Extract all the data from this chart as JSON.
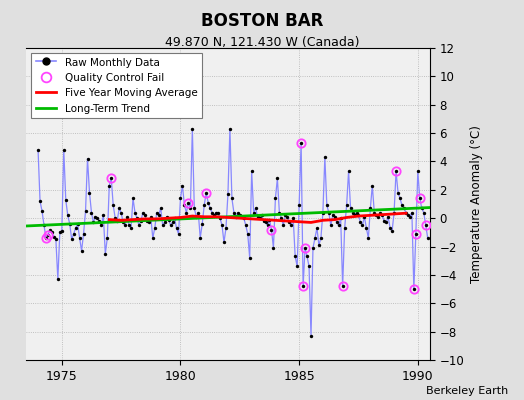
{
  "title": "BOSTON BAR",
  "subtitle": "49.870 N, 121.430 W (Canada)",
  "ylabel": "Temperature Anomaly (°C)",
  "attribution": "Berkeley Earth",
  "ylim": [
    -10,
    12
  ],
  "xlim": [
    1973.5,
    1990.5
  ],
  "yticks": [
    -10,
    -8,
    -6,
    -4,
    -2,
    0,
    2,
    4,
    6,
    8,
    10,
    12
  ],
  "xticks": [
    1975,
    1980,
    1985,
    1990
  ],
  "bg_color": "#e0e0e0",
  "plot_bg_color": "#f0f0f0",
  "raw_line_color": "#8888ff",
  "dot_color": "#000000",
  "ma_color": "#ff0000",
  "trend_color": "#00bb00",
  "qc_color": "#ff44ff",
  "raw_data_x": [
    1974.0,
    1974.083,
    1974.167,
    1974.25,
    1974.333,
    1974.417,
    1974.5,
    1974.583,
    1974.667,
    1974.75,
    1974.833,
    1974.917,
    1975.0,
    1975.083,
    1975.167,
    1975.25,
    1975.333,
    1975.417,
    1975.5,
    1975.583,
    1975.667,
    1975.75,
    1975.833,
    1975.917,
    1976.0,
    1976.083,
    1976.167,
    1976.25,
    1976.333,
    1976.417,
    1976.5,
    1976.583,
    1976.667,
    1976.75,
    1976.833,
    1976.917,
    1977.0,
    1977.083,
    1977.167,
    1977.25,
    1977.333,
    1977.417,
    1977.5,
    1977.583,
    1977.667,
    1977.75,
    1977.833,
    1977.917,
    1978.0,
    1978.083,
    1978.167,
    1978.25,
    1978.333,
    1978.417,
    1978.5,
    1978.583,
    1978.667,
    1978.75,
    1978.833,
    1978.917,
    1979.0,
    1979.083,
    1979.167,
    1979.25,
    1979.333,
    1979.417,
    1979.5,
    1979.583,
    1979.667,
    1979.75,
    1979.833,
    1979.917,
    1980.0,
    1980.083,
    1980.167,
    1980.25,
    1980.333,
    1980.417,
    1980.5,
    1980.583,
    1980.667,
    1980.75,
    1980.833,
    1980.917,
    1981.0,
    1981.083,
    1981.167,
    1981.25,
    1981.333,
    1981.417,
    1981.5,
    1981.583,
    1981.667,
    1981.75,
    1981.833,
    1981.917,
    1982.0,
    1982.083,
    1982.167,
    1982.25,
    1982.333,
    1982.417,
    1982.5,
    1982.583,
    1982.667,
    1982.75,
    1982.833,
    1982.917,
    1983.0,
    1983.083,
    1983.167,
    1983.25,
    1983.333,
    1983.417,
    1983.5,
    1983.583,
    1983.667,
    1983.75,
    1983.833,
    1983.917,
    1984.0,
    1984.083,
    1984.167,
    1984.25,
    1984.333,
    1984.417,
    1984.5,
    1984.583,
    1984.667,
    1984.75,
    1984.833,
    1984.917,
    1985.0,
    1985.083,
    1985.167,
    1985.25,
    1985.333,
    1985.417,
    1985.5,
    1985.583,
    1985.667,
    1985.75,
    1985.833,
    1985.917,
    1986.0,
    1986.083,
    1986.167,
    1986.25,
    1986.333,
    1986.417,
    1986.5,
    1986.583,
    1986.667,
    1986.75,
    1986.833,
    1986.917,
    1987.0,
    1987.083,
    1987.167,
    1987.25,
    1987.333,
    1987.417,
    1987.5,
    1987.583,
    1987.667,
    1987.75,
    1987.833,
    1987.917,
    1988.0,
    1988.083,
    1988.167,
    1988.25,
    1988.333,
    1988.417,
    1988.5,
    1988.583,
    1988.667,
    1988.75,
    1988.833,
    1988.917,
    1989.0,
    1989.083,
    1989.167,
    1989.25,
    1989.333,
    1989.417,
    1989.5,
    1989.583,
    1989.667,
    1989.75,
    1989.833,
    1989.917,
    1990.0,
    1990.083,
    1990.167,
    1990.25,
    1990.333,
    1990.417
  ],
  "raw_data_y": [
    4.8,
    1.2,
    0.5,
    -0.5,
    -1.4,
    -1.2,
    -0.8,
    -1.0,
    -1.3,
    -1.5,
    -4.3,
    -1.0,
    -0.9,
    4.8,
    1.3,
    0.2,
    -0.4,
    -1.5,
    -1.1,
    -0.7,
    -0.4,
    -1.4,
    -2.3,
    -1.1,
    0.5,
    4.2,
    1.8,
    0.4,
    -0.3,
    0.1,
    0.0,
    -0.2,
    -0.5,
    0.2,
    -2.5,
    -1.4,
    2.3,
    2.8,
    0.9,
    0.0,
    -0.2,
    0.7,
    0.4,
    -0.3,
    -0.5,
    0.1,
    -0.5,
    -0.7,
    1.4,
    0.4,
    0.0,
    -0.5,
    -0.2,
    0.4,
    0.2,
    -0.2,
    -0.3,
    0.1,
    -1.4,
    -0.7,
    0.4,
    0.2,
    0.7,
    -0.5,
    -0.3,
    0.1,
    -0.1,
    -0.5,
    -0.3,
    0.0,
    -0.7,
    -1.1,
    1.4,
    2.3,
    0.9,
    0.4,
    1.1,
    0.7,
    6.3,
    0.7,
    0.1,
    0.4,
    -1.4,
    -0.4,
    0.9,
    1.8,
    1.1,
    0.7,
    0.4,
    0.2,
    0.4,
    0.4,
    0.0,
    -0.5,
    -1.7,
    -0.7,
    1.7,
    6.3,
    1.4,
    0.4,
    0.1,
    0.4,
    0.2,
    0.1,
    0.0,
    -0.5,
    -1.1,
    -2.8,
    3.3,
    0.4,
    0.7,
    0.1,
    0.0,
    0.2,
    -0.2,
    -0.3,
    -0.5,
    -0.1,
    -0.8,
    -2.1,
    1.4,
    2.8,
    0.4,
    0.0,
    -0.5,
    0.2,
    0.1,
    -0.3,
    -0.5,
    0.0,
    -2.7,
    -3.4,
    0.9,
    5.3,
    -4.8,
    -2.1,
    -2.7,
    -3.4,
    -8.3,
    -2.1,
    -1.4,
    -0.7,
    -1.9,
    -1.4,
    0.4,
    4.3,
    0.9,
    0.4,
    -0.5,
    0.2,
    0.1,
    -0.3,
    -0.5,
    0.0,
    -4.8,
    -0.7,
    0.9,
    3.3,
    0.7,
    0.4,
    0.2,
    0.4,
    0.2,
    -0.3,
    -0.5,
    0.1,
    -0.7,
    -1.4,
    0.7,
    2.3,
    0.4,
    0.2,
    0.1,
    0.4,
    0.2,
    -0.2,
    -0.3,
    0.1,
    -0.7,
    -0.9,
    0.4,
    3.3,
    1.8,
    1.4,
    0.9,
    0.7,
    0.4,
    0.2,
    0.1,
    0.4,
    -5.0,
    -1.1,
    3.3,
    1.4,
    0.7,
    0.4,
    -0.5,
    -1.4
  ],
  "qc_fail_points": [
    [
      1974.333,
      -1.4
    ],
    [
      1974.417,
      -1.2
    ],
    [
      1977.083,
      2.8
    ],
    [
      1980.333,
      1.1
    ],
    [
      1981.083,
      1.8
    ],
    [
      1983.833,
      -0.8
    ],
    [
      1985.083,
      5.3
    ],
    [
      1985.167,
      -4.8
    ],
    [
      1985.25,
      -2.1
    ],
    [
      1986.833,
      -4.8
    ],
    [
      1989.083,
      3.3
    ],
    [
      1989.833,
      -5.0
    ],
    [
      1989.917,
      -1.1
    ],
    [
      1990.083,
      1.4
    ],
    [
      1990.333,
      -0.5
    ]
  ],
  "moving_avg_x": [
    1977.0,
    1977.5,
    1978.0,
    1978.5,
    1979.0,
    1979.5,
    1980.0,
    1980.5,
    1981.0,
    1981.5,
    1982.0,
    1982.5,
    1983.0,
    1983.5,
    1984.0,
    1984.5,
    1985.0,
    1985.5,
    1986.0,
    1986.5,
    1987.0,
    1987.5,
    1988.0,
    1988.5,
    1989.0,
    1989.5
  ],
  "moving_avg_y": [
    -0.1,
    -0.15,
    -0.1,
    -0.05,
    -0.05,
    0.0,
    0.05,
    0.15,
    0.1,
    0.1,
    0.05,
    0.0,
    -0.05,
    -0.1,
    -0.15,
    -0.2,
    -0.25,
    -0.3,
    -0.15,
    -0.1,
    0.05,
    0.15,
    0.2,
    0.25,
    0.3,
    0.35
  ],
  "trend_x": [
    1973.5,
    1990.5
  ],
  "trend_y": [
    -0.55,
    0.75
  ]
}
